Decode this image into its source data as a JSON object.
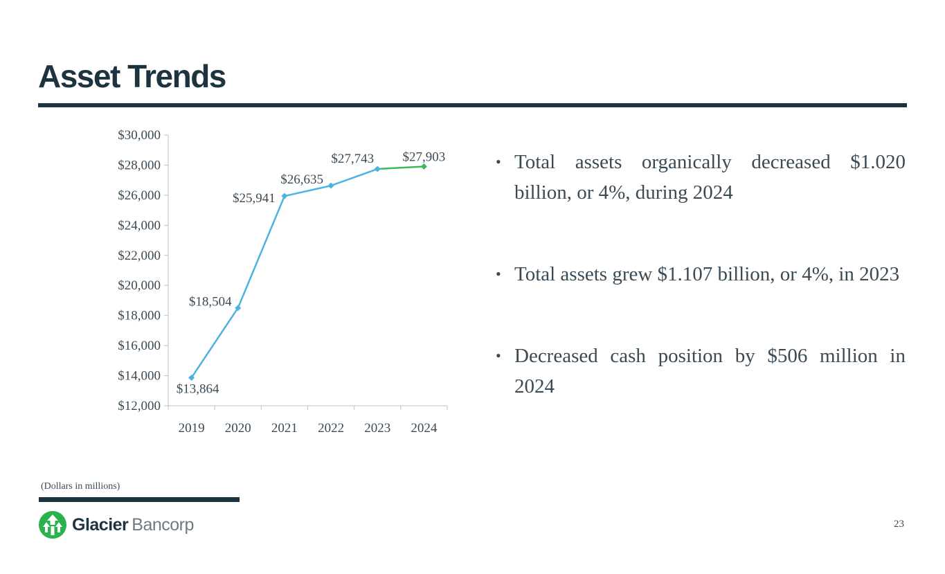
{
  "slide": {
    "title": "Asset Trends",
    "note": "(Dollars in millions)",
    "page_number": "23"
  },
  "bullets": [
    "Total assets organically decreased $1.020 billion, or 4%, during 2024",
    "Total assets grew $1.107 billion, or 4%, in 2023",
    "Decreased cash position by $506 million in 2024"
  ],
  "logo": {
    "brand_bold": "Glacier",
    "brand_light": "Bancorp",
    "icon": "tree-arrows-icon",
    "color": "#2bb24c"
  },
  "chart_data": {
    "type": "line",
    "categories": [
      "2019",
      "2020",
      "2021",
      "2022",
      "2023",
      "2024"
    ],
    "values": [
      13864,
      18504,
      25941,
      26635,
      27743,
      27903
    ],
    "data_labels": [
      "$13,864",
      "$18,504",
      "$25,941",
      "$26,635",
      "$27,743",
      "$27,903"
    ],
    "ylim": [
      12000,
      30000
    ],
    "yticks": [
      12000,
      14000,
      16000,
      18000,
      20000,
      22000,
      24000,
      26000,
      28000,
      30000
    ],
    "ytick_labels": [
      "$12,000",
      "$14,000",
      "$16,000",
      "$18,000",
      "$20,000",
      "$22,000",
      "$24,000",
      "$26,000",
      "$28,000",
      "$30,000"
    ],
    "grid": false,
    "colors": {
      "main": "#4ab3e0",
      "highlight": "#3cb95a",
      "axis": "#c0c0c0",
      "text": "#3a4a55"
    },
    "highlight_index": 5
  }
}
